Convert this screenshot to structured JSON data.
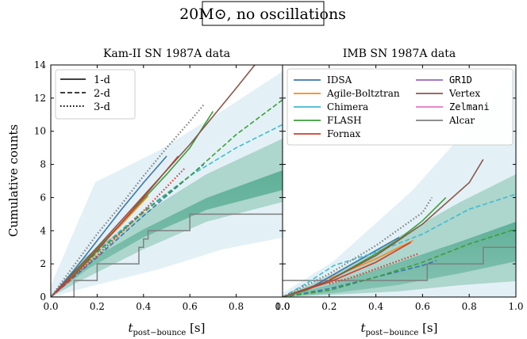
{
  "chart_data": {
    "type": "line",
    "suptitle": "20M⊙, no oscillations",
    "ylabel": "Cumulative counts",
    "xlabel": "t_post−bounce [s]",
    "xlim": [
      0,
      1
    ],
    "ylim": [
      0,
      14
    ],
    "x_ticks": [
      0.0,
      0.2,
      0.4,
      0.6,
      0.8,
      1.0
    ],
    "x_tick_labels": [
      "0.0",
      "0.2",
      "0.4",
      "0.6",
      "0.8",
      "1.0"
    ],
    "y_ticks": [
      0,
      2,
      4,
      6,
      8,
      10,
      12,
      14
    ],
    "y_tick_labels": [
      "0",
      "2",
      "4",
      "6",
      "8",
      "10",
      "12",
      "14"
    ],
    "linestyle_legend": [
      {
        "label": "1-d",
        "style": "solid"
      },
      {
        "label": "2-d",
        "style": "dashed"
      },
      {
        "label": "3-d",
        "style": "dotted"
      }
    ],
    "code_legend": [
      {
        "label": "IDSA",
        "color": "#3b75af",
        "font": "serif"
      },
      {
        "label": "Agile-Boltztran",
        "color": "#f5891f",
        "font": "serif"
      },
      {
        "label": "Chimera",
        "color": "#3fbcd0",
        "font": "serif"
      },
      {
        "label": "FLASH",
        "color": "#3c9e3a",
        "font": "serif"
      },
      {
        "label": "Fornax",
        "color": "#d03b2c",
        "font": "serif"
      },
      {
        "label": "GR1D",
        "color": "#9467bd",
        "font": "mono"
      },
      {
        "label": "Vertex",
        "color": "#8c564b",
        "font": "serif"
      },
      {
        "label": "Zelmani",
        "color": "#e377c2",
        "font": "mono"
      },
      {
        "label": "Alcar",
        "color": "#7f7f7f",
        "font": "serif"
      }
    ],
    "panels": [
      {
        "title": "Kam-II SN 1987A data",
        "data_steps": {
          "x": [
            0,
            0.1,
            0.1,
            0.2,
            0.2,
            0.38,
            0.38,
            0.4,
            0.4,
            0.42,
            0.42,
            0.6,
            0.6,
            1.0
          ],
          "y": [
            0,
            0,
            1,
            1,
            2,
            2,
            3,
            3,
            3.5,
            3.5,
            4,
            4,
            5,
            5
          ]
        },
        "series": [
          {
            "code": "IDSA",
            "dim": "1-d",
            "x": [
              0,
              0.1,
              0.2,
              0.3,
              0.4,
              0.5
            ],
            "y": [
              0,
              1.6,
              3.4,
              5.2,
              6.9,
              8.5
            ]
          },
          {
            "code": "IDSA",
            "dim": "2-d",
            "x": [
              0,
              0.2,
              0.4,
              0.6,
              0.66
            ],
            "y": [
              0,
              2.4,
              4.9,
              7.3,
              8.0
            ]
          },
          {
            "code": "Agile-Boltztran",
            "dim": "1-d",
            "x": [
              0,
              0.1,
              0.2,
              0.3,
              0.42
            ],
            "y": [
              0,
              1.4,
              2.9,
              4.3,
              6.1
            ]
          },
          {
            "code": "Chimera",
            "dim": "2-d",
            "x": [
              0,
              0.2,
              0.4,
              0.6,
              0.8,
              1.0
            ],
            "y": [
              0,
              2.8,
              5.2,
              7.3,
              9.0,
              10.4
            ]
          },
          {
            "code": "FLASH",
            "dim": "1-d",
            "x": [
              0,
              0.1,
              0.2,
              0.3,
              0.4,
              0.5,
              0.6,
              0.7
            ],
            "y": [
              0,
              1.4,
              2.9,
              4.4,
              5.9,
              7.4,
              9.0,
              11.2
            ]
          },
          {
            "code": "FLASH",
            "dim": "2-d",
            "x": [
              0,
              0.2,
              0.4,
              0.6,
              0.8,
              1.0
            ],
            "y": [
              0,
              2.7,
              5.1,
              7.3,
              9.8,
              11.9
            ]
          },
          {
            "code": "Fornax",
            "dim": "1-d",
            "x": [
              0,
              0.1,
              0.2,
              0.3,
              0.4,
              0.55
            ],
            "y": [
              0,
              1.3,
              2.8,
              4.4,
              6.0,
              8.5
            ]
          },
          {
            "code": "Fornax",
            "dim": "3-d",
            "x": [
              0,
              0.2,
              0.4,
              0.58
            ],
            "y": [
              0,
              2.5,
              5.2,
              7.8
            ]
          },
          {
            "code": "Vertex",
            "dim": "1-d",
            "x": [
              0,
              0.2,
              0.4,
              0.6,
              0.8,
              0.88
            ],
            "y": [
              0,
              3.0,
              6.1,
              9.2,
              12.6,
              14
            ]
          },
          {
            "code": "Alcar",
            "dim": "3-d",
            "x": [
              0,
              0.1,
              0.2,
              0.3,
              0.4,
              0.5,
              0.6,
              0.66
            ],
            "y": [
              0,
              1.9,
              3.8,
              5.5,
              7.3,
              9.0,
              10.6,
              11.6
            ]
          }
        ]
      },
      {
        "title": "IMB SN 1987A data",
        "data_steps": {
          "x": [
            0,
            0.62,
            0.62,
            0.86,
            0.86,
            1.0
          ],
          "y": [
            1,
            1,
            2,
            2,
            3,
            3
          ]
        },
        "series": [
          {
            "code": "IDSA",
            "dim": "1-d",
            "x": [
              0,
              0.1,
              0.2,
              0.3,
              0.4,
              0.5
            ],
            "y": [
              0,
              0.4,
              1.2,
              2.0,
              2.8,
              3.6
            ]
          },
          {
            "code": "IDSA",
            "dim": "2-d",
            "x": [
              0,
              0.2,
              0.4,
              0.6,
              0.66
            ],
            "y": [
              0,
              0.5,
              1.2,
              1.9,
              2.2
            ]
          },
          {
            "code": "Agile-Boltztran",
            "dim": "1-d",
            "x": [
              0.2,
              0.3,
              0.4,
              0.5,
              0.56
            ],
            "y": [
              1.1,
              1.7,
              2.3,
              3.0,
              3.4
            ]
          },
          {
            "code": "Chimera",
            "dim": "2-d",
            "x": [
              0,
              0.1,
              0.22,
              0.4,
              0.6,
              0.8,
              1.0
            ],
            "y": [
              0,
              0.8,
              1.9,
              2.7,
              3.8,
              5.3,
              6.2
            ]
          },
          {
            "code": "FLASH",
            "dim": "1-d",
            "x": [
              0,
              0.1,
              0.2,
              0.3,
              0.4,
              0.5,
              0.6,
              0.7
            ],
            "y": [
              0,
              0.4,
              1.0,
              1.8,
              2.6,
              3.5,
              4.6,
              6.0
            ]
          },
          {
            "code": "FLASH",
            "dim": "2-d",
            "x": [
              0,
              0.2,
              0.4,
              0.6,
              0.8,
              1.0
            ],
            "y": [
              0,
              0.4,
              1.2,
              2.1,
              3.2,
              4.1
            ]
          },
          {
            "code": "Fornax",
            "dim": "1-d",
            "x": [
              0,
              0.2,
              0.4,
              0.55
            ],
            "y": [
              0,
              0.9,
              2.1,
              3.3
            ]
          },
          {
            "code": "Fornax",
            "dim": "3-d",
            "x": [
              0.2,
              0.3,
              0.4,
              0.5,
              0.58
            ],
            "y": [
              0.8,
              1.2,
              1.7,
              2.2,
              2.6
            ]
          },
          {
            "code": "Vertex",
            "dim": "1-d",
            "x": [
              0,
              0.2,
              0.4,
              0.6,
              0.8,
              0.86
            ],
            "y": [
              0,
              1.0,
              2.5,
              4.4,
              6.9,
              8.3
            ]
          },
          {
            "code": "Alcar",
            "dim": "3-d",
            "x": [
              0,
              0.2,
              0.4,
              0.6,
              0.64
            ],
            "y": [
              0,
              1.4,
              3.1,
              5.1,
              6.0
            ]
          }
        ]
      }
    ]
  }
}
